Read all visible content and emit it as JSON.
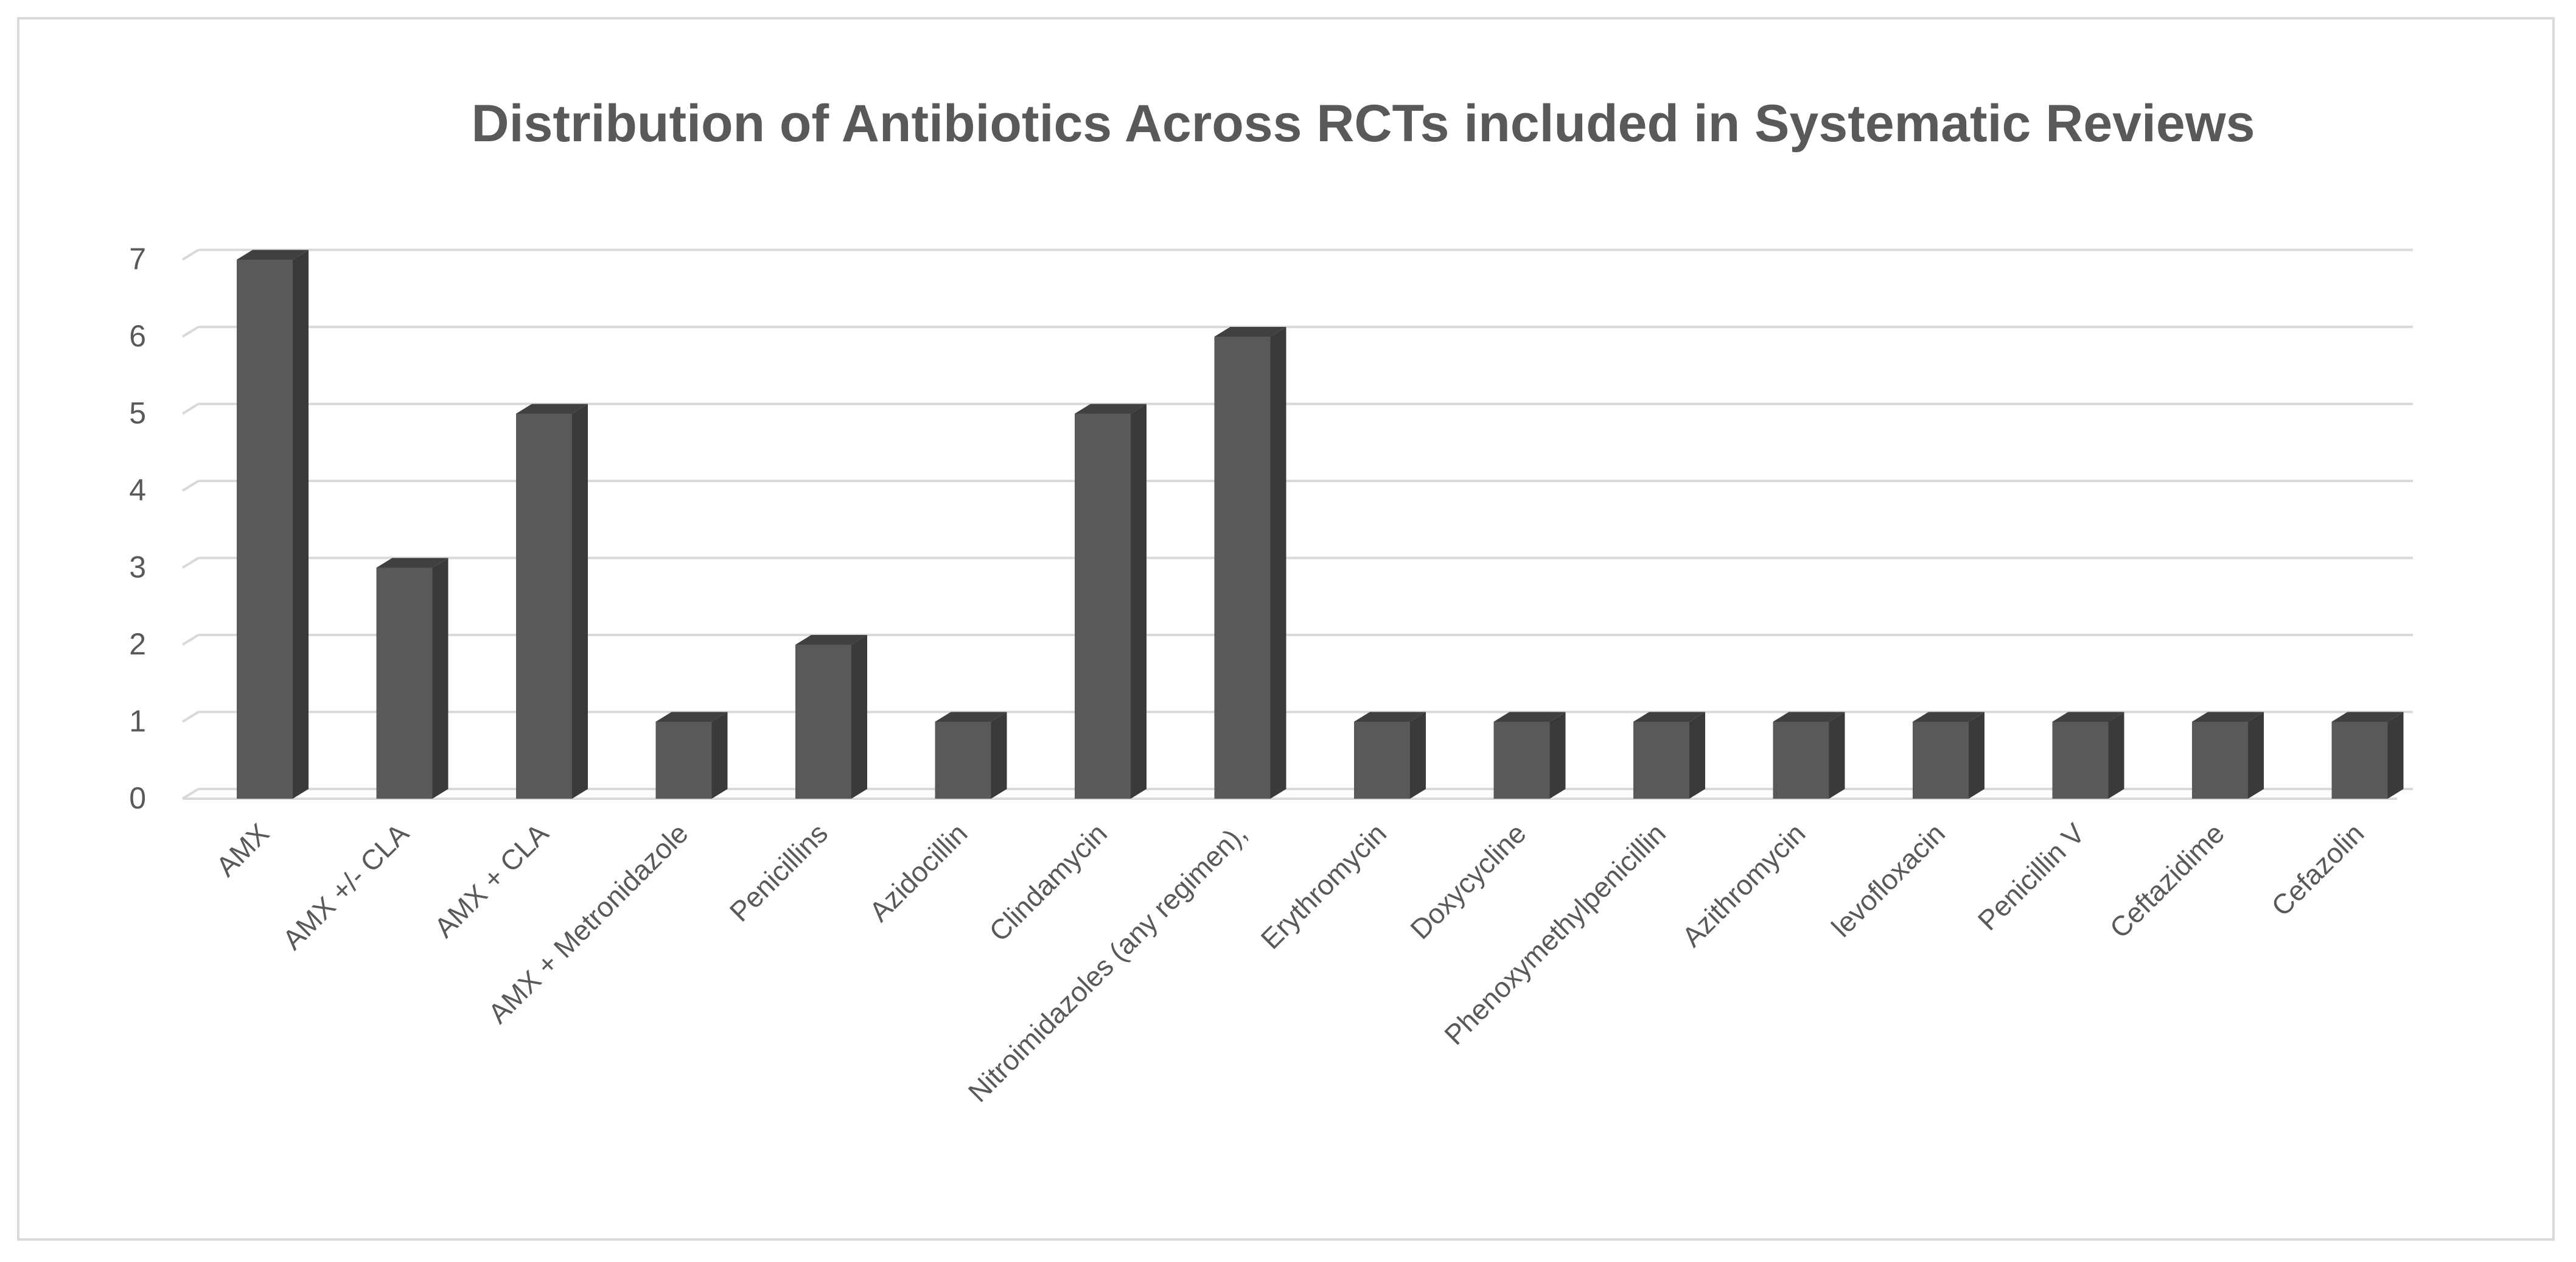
{
  "chart_data": {
    "type": "bar",
    "title": "Distribution of Antibiotics Across RCTs included in Systematic Reviews",
    "xlabel": "",
    "ylabel": "",
    "categories": [
      "AMX",
      "AMX +/- CLA",
      "AMX + CLA",
      "AMX + Metronidazole",
      "Penicillins",
      "Azidocillin",
      "Clindamycin",
      "Nitroimidazoles (any regimen),",
      "Erythromycin",
      "Doxycycline",
      "Phenoxymethylpenicillin",
      "Azithromycin",
      "levofloxacin",
      "Penicillin V",
      "Ceftazidime",
      "Cefazolin"
    ],
    "values": [
      7,
      3,
      5,
      1,
      2,
      1,
      5,
      6,
      1,
      1,
      1,
      1,
      1,
      1,
      1,
      1
    ],
    "ylim": [
      0,
      7
    ],
    "yticks": [
      0,
      1,
      2,
      3,
      4,
      5,
      6,
      7
    ],
    "grid": true,
    "legend": "none",
    "style": "3d-column",
    "colors": {
      "bar_front": "#595959",
      "bar_side": "#3a3a3a",
      "bar_top": "#404040",
      "gridline": "#d9d9d9",
      "text": "#595959",
      "border": "#d9d9d9"
    }
  }
}
